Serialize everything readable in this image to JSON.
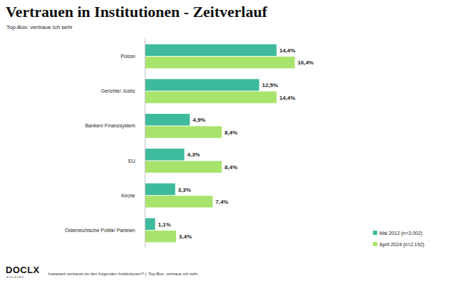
{
  "chart_data": {
    "type": "bar",
    "orientation": "horizontal",
    "title": "Vertrauen in Institutionen - Zeitverlauf",
    "subtitle": "Top-Box: vertraue ich sehr",
    "categories": [
      "Polizei",
      "Gerichte/ Justiz",
      "Banken/ Finanzsystem",
      "EU",
      "Kirche",
      "Österreichische Politik/ Parteien"
    ],
    "series": [
      {
        "name": "Mai 2012 (n=3.002)",
        "color": "#3dbb9c",
        "values": [
          14.4,
          12.5,
          4.9,
          4.3,
          3.3,
          1.1
        ],
        "value_labels": [
          "14,4%",
          "12,5%",
          "4,9%",
          "4,3%",
          "3,3%",
          "1,1%"
        ]
      },
      {
        "name": "April 2024 (n=2.192)",
        "color": "#a8e46c",
        "values": [
          16.4,
          14.4,
          8.4,
          8.4,
          7.4,
          3.4
        ],
        "value_labels": [
          "16,4%",
          "14,4%",
          "8,4%",
          "8,4%",
          "7,4%",
          "3,4%"
        ]
      }
    ],
    "xlim": [
      0,
      30
    ],
    "data_labels": true,
    "tick_labels": "y",
    "grid": false,
    "legend": "bottom-right",
    "annotations": [
      "Inwieweit vertraust du den folgenden Institutionen? |; Top-Box: vertraue ich sehr"
    ]
  },
  "logo": {
    "text": "DOCLX",
    "subtext": "HOLDING"
  }
}
